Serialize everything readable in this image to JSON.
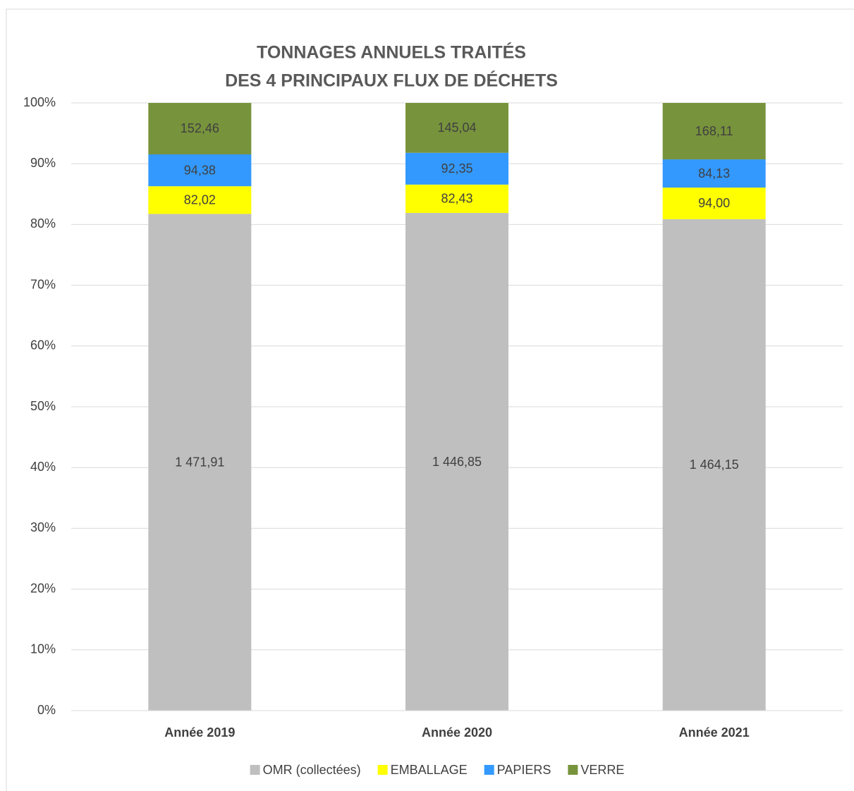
{
  "chart_data": {
    "type": "bar",
    "stacked": "percent",
    "title": [
      "TONNAGES ANNUELS TRAITÉS",
      "DES 4 PRINCIPAUX FLUX DE DÉCHETS"
    ],
    "categories": [
      "Année 2019",
      "Année 2020",
      "Année 2021"
    ],
    "series": [
      {
        "name": "OMR (collectées)",
        "color": "#bfbfbf",
        "values": [
          1471.91,
          1446.85,
          1464.15
        ],
        "value_labels": [
          "1 471,91",
          "1 446,85",
          "1 464,15"
        ]
      },
      {
        "name": "EMBALLAGE",
        "color": "#ffff00",
        "values": [
          82.02,
          82.43,
          94.0
        ],
        "value_labels": [
          "82,02",
          "82,43",
          "94,00"
        ]
      },
      {
        "name": "PAPIERS",
        "color": "#3399ff",
        "values": [
          94.38,
          92.35,
          84.13
        ],
        "value_labels": [
          "94,38",
          "92,35",
          "84,13"
        ]
      },
      {
        "name": "VERRE",
        "color": "#77933c",
        "values": [
          152.46,
          145.04,
          168.11
        ],
        "value_labels": [
          "152,46",
          "145,04",
          "168,11"
        ]
      }
    ],
    "ylim": [
      0,
      100
    ],
    "yticks": [
      {
        "value": 0,
        "label": "0%"
      },
      {
        "value": 10,
        "label": "10%"
      },
      {
        "value": 20,
        "label": "20%"
      },
      {
        "value": 30,
        "label": "30%"
      },
      {
        "value": 40,
        "label": "40%"
      },
      {
        "value": 50,
        "label": "50%"
      },
      {
        "value": 60,
        "label": "60%"
      },
      {
        "value": 70,
        "label": "70%"
      },
      {
        "value": 80,
        "label": "80%"
      },
      {
        "value": 90,
        "label": "90%"
      },
      {
        "value": 100,
        "label": "100%"
      }
    ],
    "grid": true,
    "legend": "bottom"
  }
}
